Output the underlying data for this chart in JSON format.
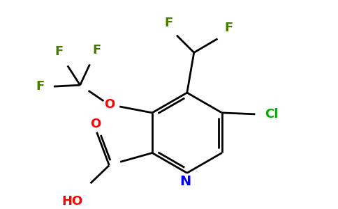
{
  "background_color": "#ffffff",
  "bond_color": "#000000",
  "atom_colors": {
    "F": "#4a7c00",
    "O": "#ff0000",
    "N": "#0000ff",
    "Cl": "#00aa00",
    "HO": "#ff0000",
    "C": "#000000"
  },
  "figsize": [
    4.84,
    3.0
  ],
  "dpi": 100
}
